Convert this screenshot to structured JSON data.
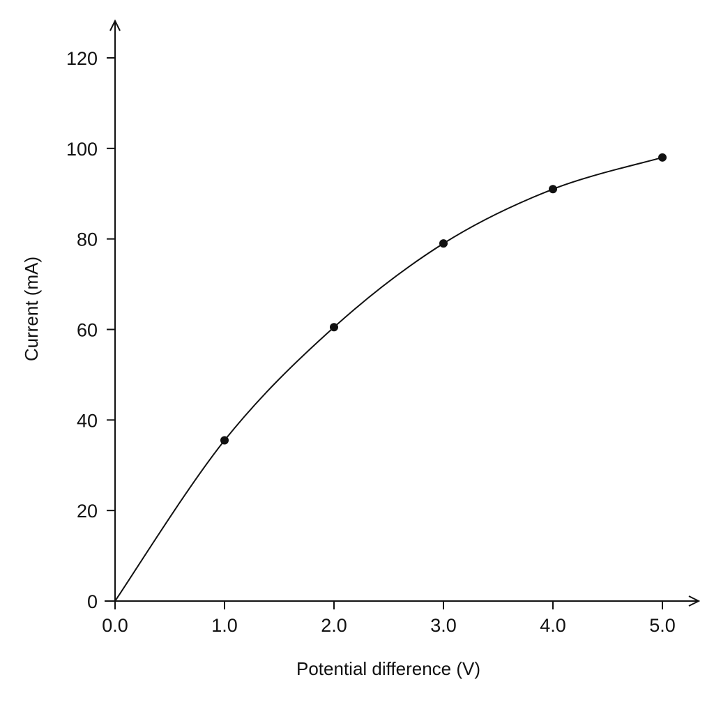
{
  "chart_data": {
    "type": "scatter",
    "title": "",
    "xlabel": "Potential difference (V)",
    "ylabel": "Current (mA)",
    "xlim": [
      0,
      5.0
    ],
    "ylim": [
      0,
      120
    ],
    "x_ticks": [
      0,
      1,
      2,
      3,
      4,
      5
    ],
    "x_tick_labels": [
      "0.0",
      "1.0",
      "2.0",
      "3.0",
      "4.0",
      "5.0"
    ],
    "y_ticks": [
      0,
      20,
      40,
      60,
      80,
      100,
      120
    ],
    "y_tick_labels": [
      "0",
      "20",
      "40",
      "60",
      "80",
      "100",
      "120"
    ],
    "grid": false,
    "series": [
      {
        "x": [
          1.0,
          2.0,
          3.0,
          4.0,
          5.0
        ],
        "y": [
          35.5,
          60.5,
          79,
          91,
          98
        ],
        "markers": true,
        "fit_curve": "smooth",
        "curve_through_origin": true
      }
    ],
    "colors": {
      "axis": "#111111",
      "curve": "#111111",
      "marker": "#111111"
    }
  }
}
